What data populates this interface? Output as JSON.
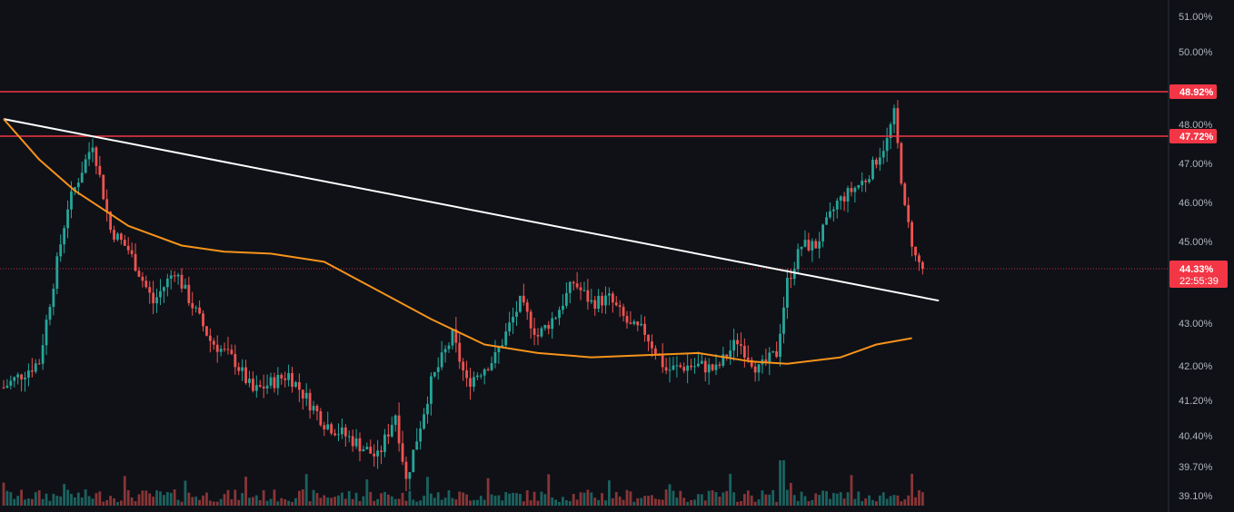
{
  "chart_data": {
    "type": "candlestick",
    "title": "",
    "xlabel": "",
    "ylabel": "",
    "grid": false,
    "y_tick_labels": [
      "51.00%",
      "50.00%",
      "48.00%",
      "47.00%",
      "46.00%",
      "45.00%",
      "43.00%",
      "42.00%",
      "41.20%",
      "40.40%",
      "39.70%",
      "39.10%"
    ],
    "horizontal_levels": [
      {
        "label": "48.92%",
        "value": 48.92,
        "color": "#f23645"
      },
      {
        "label": "47.72%",
        "value": 47.72,
        "color": "#f23645"
      }
    ],
    "last_price": {
      "label": "44.33%",
      "value": 44.33,
      "countdown": "22:55:39",
      "color": "#f23645"
    },
    "trendline": {
      "color": "#ffffff",
      "from": {
        "bar": 0,
        "value": 48.15
      },
      "to": {
        "bar": 260,
        "value": 43.55
      }
    },
    "moving_average": {
      "color": "#f7931a",
      "anchors": [
        [
          0,
          48.15
        ],
        [
          10,
          47.1
        ],
        [
          20,
          46.3
        ],
        [
          35,
          45.4
        ],
        [
          50,
          44.9
        ],
        [
          62,
          44.75
        ],
        [
          75,
          44.7
        ],
        [
          90,
          44.5
        ],
        [
          105,
          43.8
        ],
        [
          120,
          43.1
        ],
        [
          135,
          42.5
        ],
        [
          150,
          42.3
        ],
        [
          165,
          42.2
        ],
        [
          180,
          42.25
        ],
        [
          195,
          42.3
        ],
        [
          210,
          42.1
        ],
        [
          220,
          42.05
        ],
        [
          235,
          42.2
        ],
        [
          245,
          42.5
        ],
        [
          255,
          42.65
        ]
      ]
    },
    "price_path": [
      [
        0,
        41.5
      ],
      [
        10,
        42.1
      ],
      [
        14,
        44.0
      ],
      [
        18,
        45.9
      ],
      [
        25,
        47.55
      ],
      [
        30,
        45.3
      ],
      [
        35,
        44.8
      ],
      [
        42,
        43.5
      ],
      [
        48,
        44.3
      ],
      [
        52,
        43.6
      ],
      [
        58,
        42.6
      ],
      [
        65,
        42.1
      ],
      [
        70,
        41.4
      ],
      [
        80,
        41.8
      ],
      [
        90,
        40.7
      ],
      [
        98,
        40.3
      ],
      [
        105,
        39.9
      ],
      [
        110,
        40.9
      ],
      [
        113,
        39.4
      ],
      [
        120,
        41.6
      ],
      [
        126,
        42.7
      ],
      [
        130,
        41.6
      ],
      [
        138,
        42.2
      ],
      [
        145,
        43.5
      ],
      [
        150,
        42.7
      ],
      [
        155,
        43.2
      ],
      [
        160,
        44.0
      ],
      [
        165,
        43.5
      ],
      [
        170,
        43.6
      ],
      [
        176,
        42.9
      ],
      [
        180,
        42.8
      ],
      [
        186,
        41.9
      ],
      [
        192,
        42.0
      ],
      [
        196,
        42.0
      ],
      [
        200,
        41.9
      ],
      [
        206,
        42.6
      ],
      [
        212,
        41.9
      ],
      [
        217,
        42.3
      ],
      [
        220,
        44.0
      ],
      [
        224,
        44.9
      ],
      [
        228,
        44.9
      ],
      [
        234,
        46.0
      ],
      [
        242,
        46.6
      ],
      [
        248,
        47.6
      ],
      [
        250,
        48.3
      ],
      [
        253,
        45.8
      ],
      [
        256,
        44.6
      ],
      [
        258,
        44.33
      ]
    ],
    "volume": {
      "note": "volume bars shown at bottom of the pane"
    },
    "colors": {
      "up": "#26a69a",
      "down": "#ef5350",
      "background": "#0f1117"
    }
  }
}
